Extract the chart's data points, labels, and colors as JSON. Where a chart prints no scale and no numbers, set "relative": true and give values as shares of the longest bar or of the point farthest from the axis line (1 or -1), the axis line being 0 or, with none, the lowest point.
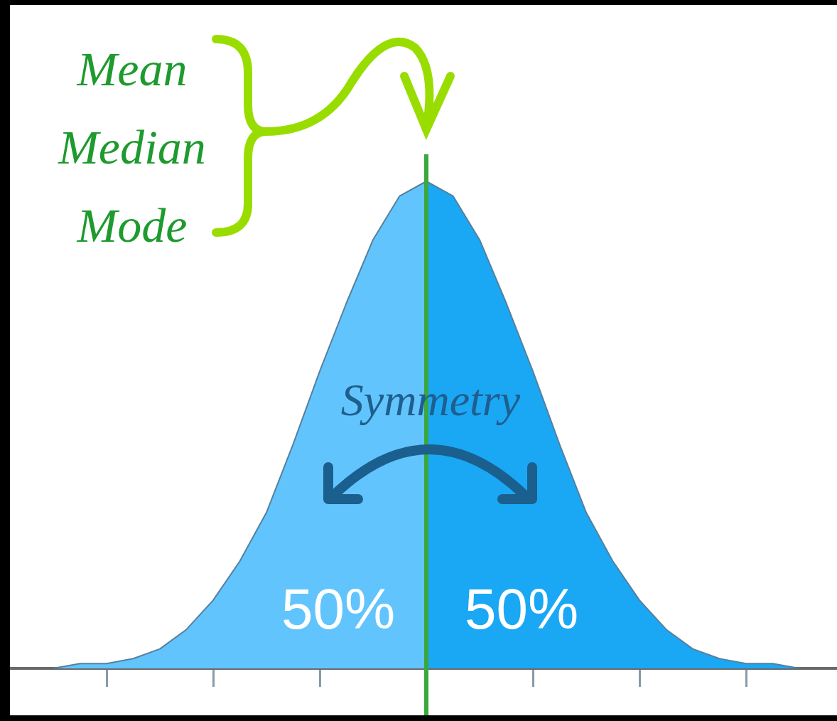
{
  "chart_data": {
    "type": "area",
    "relative": true,
    "categories": [
      null,
      null,
      null,
      null,
      null,
      null,
      null,
      null,
      null,
      null,
      null,
      null,
      null,
      null,
      null,
      null,
      null,
      null,
      null,
      null,
      null,
      null,
      null,
      null,
      null,
      null,
      null,
      null,
      null
    ],
    "grid": false,
    "legend": false,
    "series": [
      {
        "color": "#62c4fc",
        "values": [
          0,
          0.01,
          0.01,
          0.02,
          0.04,
          0.08,
          0.14,
          0.22,
          0.32,
          0.46,
          0.61,
          0.75,
          0.88,
          0.97,
          1,
          null,
          null,
          null,
          null,
          null,
          null,
          null,
          null,
          null,
          null,
          null,
          null,
          null,
          null
        ]
      },
      {
        "color": "#1aa8f5",
        "values": [
          null,
          null,
          null,
          null,
          null,
          null,
          null,
          null,
          null,
          null,
          null,
          null,
          null,
          null,
          1,
          0.97,
          0.88,
          0.75,
          0.61,
          0.46,
          0.32,
          0.22,
          0.14,
          0.08,
          0.04,
          0.02,
          0.01,
          0.01,
          0
        ]
      }
    ],
    "annotations": [
      "Mean\nMedian\nMode",
      "Symmetry",
      "50%",
      "50%"
    ]
  }
}
